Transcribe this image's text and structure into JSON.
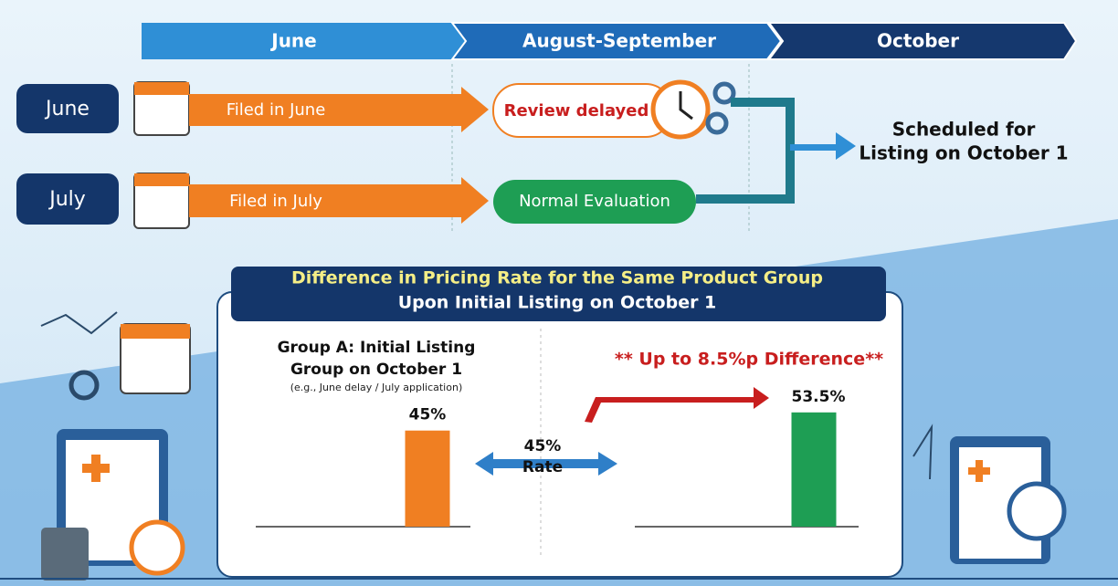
{
  "timeline": {
    "phases": [
      "June",
      "August-September",
      "October"
    ]
  },
  "rows": [
    {
      "month": "June",
      "filed": "Filed in June",
      "status": "Review delayed"
    },
    {
      "month": "July",
      "filed": "Filed in July",
      "status": "Normal Evaluation"
    }
  ],
  "outcome": [
    "Scheduled for",
    "Listing on October 1"
  ],
  "comparison": {
    "title": [
      "Difference in Pricing Rate for the Same Product Group",
      "Upon Initial Listing on October 1"
    ],
    "group_a": {
      "label": [
        "Group A: Initial Listing",
        "Group on October 1"
      ],
      "note": "(e.g., June delay / July application)"
    },
    "rate": [
      "45%",
      "Rate"
    ],
    "difference": "** Up to 8.5%p Difference**",
    "bars": {
      "values": [
        45,
        53.5
      ],
      "value_labels": [
        "45%",
        "53.5%"
      ],
      "colors": [
        "#f07f22",
        "#1e9e54"
      ]
    }
  }
}
